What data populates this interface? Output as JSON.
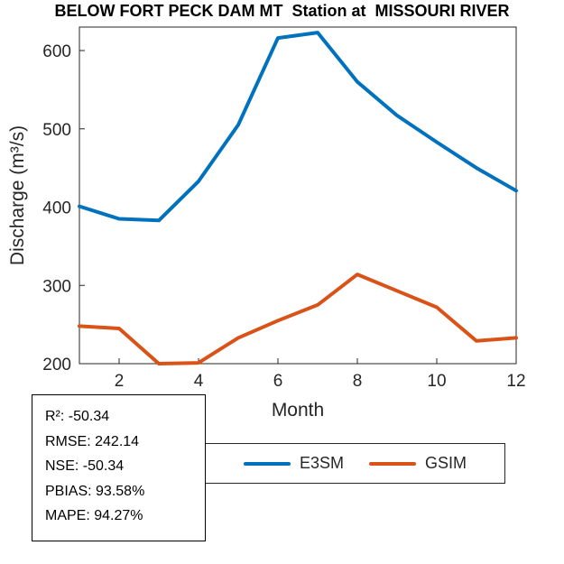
{
  "title": "BELOW FORT PECK DAM MT  Station at  MISSOURI RIVER",
  "chart_data": {
    "type": "line",
    "x": [
      1,
      2,
      3,
      4,
      5,
      6,
      7,
      8,
      9,
      10,
      11,
      12
    ],
    "series": [
      {
        "name": "E3SM",
        "color": "#0072BD",
        "values": [
          401,
          385,
          383,
          433,
          505,
          616,
          623,
          560,
          517,
          483,
          450,
          421
        ]
      },
      {
        "name": "GSIM",
        "color": "#D95319",
        "values": [
          248,
          245,
          200,
          201,
          233,
          255,
          275,
          314,
          293,
          272,
          229,
          233
        ]
      }
    ],
    "title": "BELOW FORT PECK DAM MT  Station at  MISSOURI RIVER",
    "xlabel": "Month",
    "ylabel": "Discharge (m³/s)",
    "xlim": [
      1,
      12
    ],
    "ylim": [
      200,
      630
    ],
    "xticks": [
      2,
      4,
      6,
      8,
      10,
      12
    ],
    "yticks": [
      200,
      300,
      400,
      500,
      600
    ],
    "grid": false,
    "legend_position": "bottom"
  },
  "legend": {
    "items": [
      {
        "label": "E3SM",
        "color": "#0072BD"
      },
      {
        "label": "GSIM",
        "color": "#D95319"
      }
    ]
  },
  "stats_box": {
    "lines": [
      "R²: -50.34",
      "RMSE: 242.14",
      "NSE: -50.34",
      "PBIAS: 93.58%",
      "MAPE: 94.27%"
    ]
  },
  "axis_color": "#262626"
}
